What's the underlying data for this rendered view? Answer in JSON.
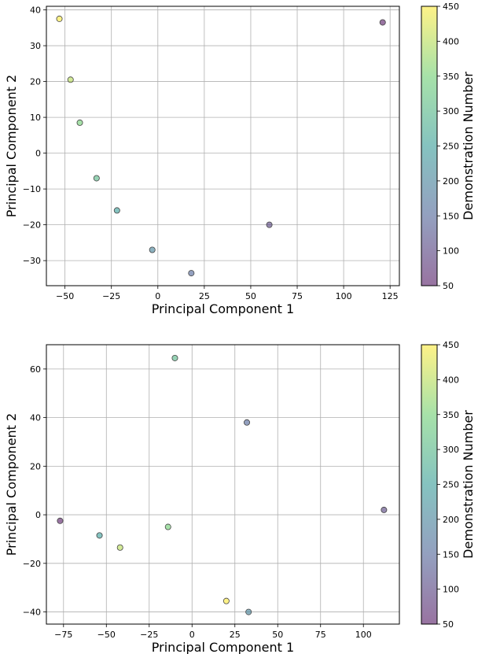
{
  "colormap": {
    "name": "viridis",
    "alpha": 0.55,
    "stops": [
      "#440154",
      "#3b528b",
      "#21918c",
      "#5ec962",
      "#fde725"
    ]
  },
  "chart_data": [
    {
      "type": "scatter",
      "title": "",
      "xlabel": "Principal Component 1",
      "ylabel": "Principal Component 2",
      "xlim": [
        -60,
        130
      ],
      "ylim": [
        -37,
        41
      ],
      "xticks": [
        -50,
        -25,
        0,
        25,
        50,
        75,
        100,
        125
      ],
      "yticks": [
        -30,
        -20,
        -10,
        0,
        10,
        20,
        30,
        40
      ],
      "grid": true,
      "colorbar": {
        "label": "Demonstration Number",
        "range": [
          50,
          450
        ],
        "ticks": [
          50,
          100,
          150,
          200,
          250,
          300,
          350,
          400,
          450
        ]
      },
      "points": [
        {
          "x": -53,
          "y": 37.5,
          "c": 450
        },
        {
          "x": -47,
          "y": 20.5,
          "c": 400
        },
        {
          "x": -42,
          "y": 8.5,
          "c": 350
        },
        {
          "x": -33,
          "y": -7,
          "c": 300
        },
        {
          "x": -22,
          "y": -16,
          "c": 250
        },
        {
          "x": -3,
          "y": -27,
          "c": 200
        },
        {
          "x": 18,
          "y": -33.5,
          "c": 150
        },
        {
          "x": 60,
          "y": -20,
          "c": 100
        },
        {
          "x": 121,
          "y": 36.5,
          "c": 50
        }
      ]
    },
    {
      "type": "scatter",
      "title": "",
      "xlabel": "Principal Component 1",
      "ylabel": "Principal Component 2",
      "xlim": [
        -85,
        121
      ],
      "ylim": [
        -45,
        70
      ],
      "xticks": [
        -75,
        -50,
        -25,
        0,
        25,
        50,
        75,
        100
      ],
      "yticks": [
        -40,
        -20,
        0,
        20,
        40,
        60
      ],
      "grid": true,
      "colorbar": {
        "label": "Demonstration Number",
        "range": [
          50,
          450
        ],
        "ticks": [
          50,
          100,
          150,
          200,
          250,
          300,
          350,
          400,
          450
        ]
      },
      "points": [
        {
          "x": -10,
          "y": 64.5,
          "c": 300
        },
        {
          "x": 32,
          "y": 38,
          "c": 150
        },
        {
          "x": 112,
          "y": 2,
          "c": 100
        },
        {
          "x": -77,
          "y": -2.5,
          "c": 50
        },
        {
          "x": -54,
          "y": -8.5,
          "c": 250
        },
        {
          "x": -42,
          "y": -13.5,
          "c": 400
        },
        {
          "x": -14,
          "y": -5,
          "c": 350
        },
        {
          "x": 20,
          "y": -35.5,
          "c": 450
        },
        {
          "x": 33,
          "y": -40,
          "c": 200
        }
      ]
    }
  ]
}
